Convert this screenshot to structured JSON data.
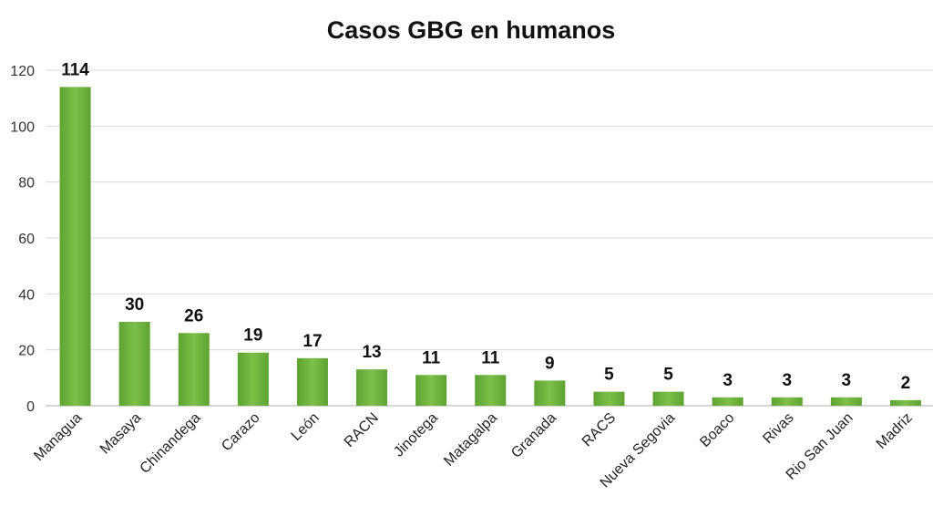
{
  "chart_data": {
    "type": "bar",
    "title": "Casos GBG en humanos",
    "xlabel": "",
    "ylabel": "",
    "categories": [
      "Managua",
      "Masaya",
      "Chinandega",
      "Carazo",
      "León",
      "RACN",
      "Jinotega",
      "Matagalpa",
      "Granada",
      "RACS",
      "Nueva Segovia",
      "Boaco",
      "Rivas",
      "Rio San Juan",
      "Madriz"
    ],
    "values": [
      114,
      30,
      26,
      19,
      17,
      13,
      11,
      11,
      9,
      5,
      5,
      3,
      3,
      3,
      2
    ],
    "ylim": [
      0,
      120
    ],
    "yticks": [
      0,
      20,
      40,
      60,
      80,
      100,
      120
    ],
    "grid": true,
    "legend": "none",
    "bar_color": "#6fb03f"
  }
}
